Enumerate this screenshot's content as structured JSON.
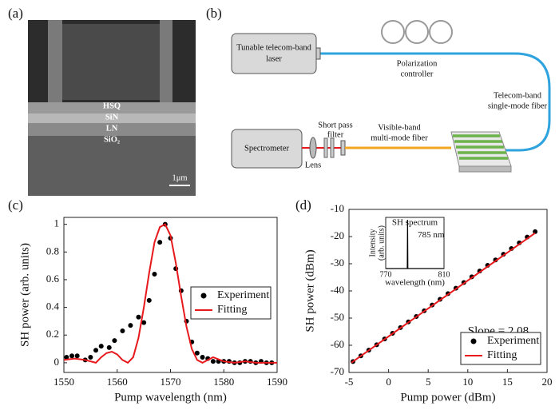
{
  "panels": {
    "a": {
      "label": "(a)",
      "layers": [
        "HSQ",
        "SiN",
        "LN",
        "SiO₂"
      ],
      "scale": "1μm"
    },
    "b": {
      "label": "(b)",
      "laser": [
        "Tunable telecom-band",
        "laser"
      ],
      "controller": [
        "Polarization",
        "controller"
      ],
      "telecom_fiber": [
        "Telecom-band",
        "single-mode fiber"
      ],
      "spectrometer": "Spectrometer",
      "lens": "Lens",
      "filter": [
        "Short pass",
        "filter"
      ],
      "visible_fiber": [
        "Visible-band",
        "multi-mode fiber"
      ]
    }
  },
  "chart_data": [
    {
      "type": "line",
      "label": "(c)",
      "xlabel": "Pump wavelength (nm)",
      "ylabel": "SH power (arb. units)",
      "xlim": [
        1550,
        1590
      ],
      "xticks": [
        1550,
        1560,
        1570,
        1580,
        1590
      ],
      "ylim": [
        -0.07,
        1.05
      ],
      "yticks": [
        0,
        0.2,
        0.4,
        0.6,
        0.8,
        1
      ],
      "legend": "center right",
      "series": [
        {
          "name": "Experiment",
          "mode": "markers",
          "color": "#000000",
          "x": [
            1550.5,
            1551.5,
            1552.5,
            1554,
            1555,
            1556,
            1557,
            1558.5,
            1559.5,
            1561,
            1562.5,
            1564,
            1565,
            1566,
            1567,
            1568,
            1569,
            1570,
            1571,
            1572,
            1573,
            1574,
            1575,
            1576,
            1577,
            1578,
            1579,
            1580,
            1581,
            1582,
            1583,
            1584,
            1585,
            1586,
            1587,
            1588,
            1589
          ],
          "values": [
            0.04,
            0.05,
            0.05,
            0.02,
            0.04,
            0.09,
            0.12,
            0.11,
            0.16,
            0.23,
            0.27,
            0.33,
            0.29,
            0.45,
            0.64,
            0.87,
            1.0,
            0.9,
            0.68,
            0.52,
            0.3,
            0.15,
            0.07,
            0.04,
            0.03,
            0.01,
            0.01,
            0.01,
            0.01,
            0.0,
            0.0,
            0.01,
            0.01,
            0.0,
            0.01,
            0.0,
            0.0
          ]
        },
        {
          "name": "Fitting",
          "mode": "line",
          "color": "#e8191c",
          "x": [
            1550,
            1552,
            1554,
            1556,
            1557,
            1558,
            1559,
            1560,
            1561,
            1562,
            1563,
            1564,
            1565,
            1566,
            1567,
            1568,
            1569,
            1570,
            1571,
            1572,
            1573,
            1574,
            1575,
            1576,
            1577,
            1578,
            1580,
            1582,
            1584,
            1586,
            1588,
            1590
          ],
          "values": [
            0.02,
            0.03,
            0.02,
            0.0,
            0.04,
            0.07,
            0.08,
            0.06,
            0.02,
            0.0,
            0.04,
            0.18,
            0.4,
            0.65,
            0.87,
            0.98,
            1.0,
            0.92,
            0.72,
            0.48,
            0.26,
            0.1,
            0.02,
            0.0,
            0.02,
            0.04,
            0.01,
            0.0,
            0.01,
            0.0,
            0.0,
            0.0
          ]
        }
      ]
    },
    {
      "type": "line",
      "label": "(d)",
      "xlabel": "Pump power (dBm)",
      "ylabel": "SH power (dBm)",
      "xlim": [
        -5,
        20
      ],
      "xticks": [
        -5,
        0,
        5,
        10,
        15,
        20
      ],
      "ylim": [
        -70,
        -10
      ],
      "yticks": [
        -70,
        -60,
        -50,
        -40,
        -30,
        -20,
        -10
      ],
      "legend": "lower right",
      "annotation": "Slope = 2.08",
      "series": [
        {
          "name": "Experiment",
          "mode": "markers",
          "color": "#000000",
          "x": [
            -4.5,
            -3.5,
            -2.5,
            -1.5,
            -0.5,
            0.5,
            1.5,
            2.5,
            3.5,
            4.5,
            5.5,
            6.5,
            7.5,
            8.5,
            9.5,
            10.5,
            11.5,
            12.5,
            13.5,
            14.5,
            15.5,
            16.5,
            17.5,
            18.5
          ],
          "values": [
            -66,
            -63.9,
            -61.8,
            -59.8,
            -57.7,
            -55.6,
            -53.5,
            -51.4,
            -49.4,
            -47.3,
            -45.2,
            -43.1,
            -41.0,
            -39.0,
            -36.9,
            -34.8,
            -32.7,
            -30.6,
            -28.6,
            -26.5,
            -24.4,
            -22.3,
            -20.2,
            -18.2
          ]
        },
        {
          "name": "Fitting",
          "mode": "line",
          "color": "#e8191c",
          "x": [
            -4.7,
            18.5
          ],
          "values": [
            -66.4,
            -18.7
          ]
        }
      ]
    },
    {
      "type": "line",
      "title": "SH spectrum",
      "xlabel": "wavelength (nm)",
      "ylabel": [
        "Intensity",
        "(arb. units)"
      ],
      "xlim": [
        770,
        810
      ],
      "xticks": [
        770,
        810
      ],
      "ylim": [
        0,
        1.05
      ],
      "annotation": "785 nm",
      "annotation_color": "#e8191c",
      "series": [
        {
          "mode": "line",
          "color": "#000000",
          "x": [
            770,
            784.8,
            785,
            785.2,
            810
          ],
          "values": [
            0,
            0,
            1,
            0,
            0
          ]
        }
      ]
    }
  ]
}
